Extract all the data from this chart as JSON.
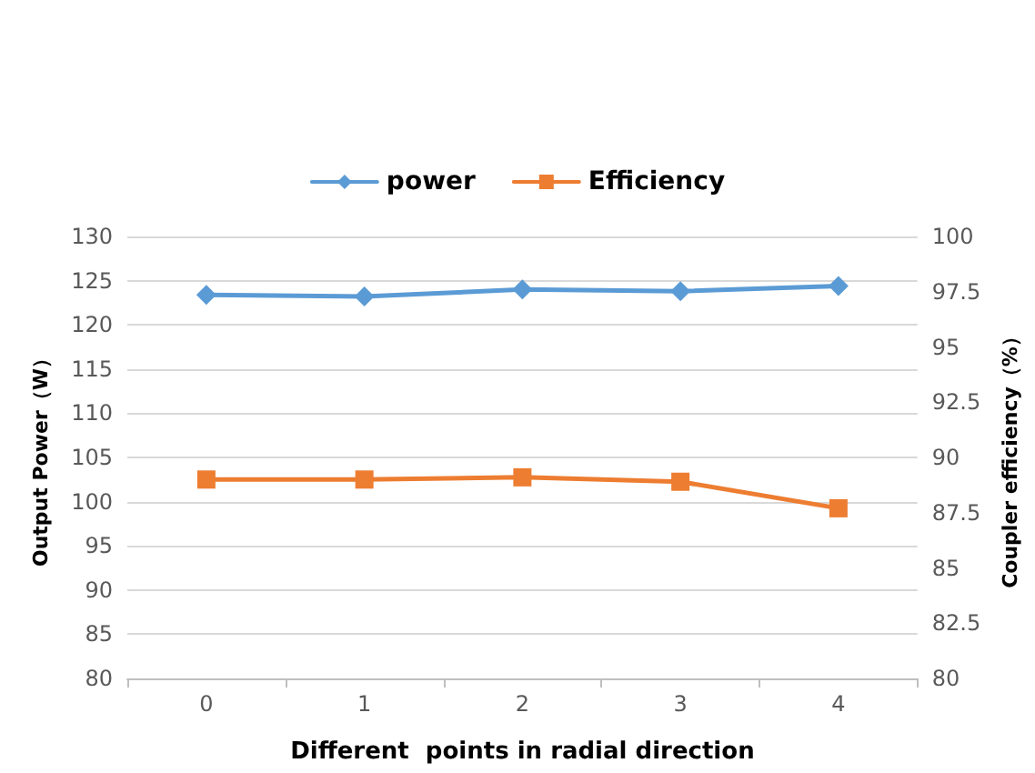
{
  "chart_data": {
    "type": "line",
    "xlabel": "Different  points in radial direction",
    "ylabel": "Output Power（W）",
    "y2label": "Coupler efficiency（%）",
    "categories": [
      "0",
      "1",
      "2",
      "3",
      "4"
    ],
    "series": [
      {
        "name": "power",
        "color": "#5b9bd5",
        "marker": "diamond",
        "values": [
          123.4,
          123.2,
          124.0,
          123.8,
          124.4
        ]
      },
      {
        "name": "Efficiency",
        "color": "#ed7d31",
        "marker": "square",
        "axis": "y2",
        "values": [
          89.0,
          89.0,
          89.1,
          88.9,
          87.7
        ]
      }
    ],
    "ylim": [
      80,
      130
    ],
    "yticks": [
      80,
      85,
      90,
      95,
      100,
      105,
      110,
      115,
      120,
      125,
      130
    ],
    "y2lim": [
      80,
      100
    ],
    "y2ticks": [
      80,
      82.5,
      85,
      87.5,
      90,
      92.5,
      95,
      97.5,
      100
    ],
    "grid": "y",
    "legend": "top"
  }
}
